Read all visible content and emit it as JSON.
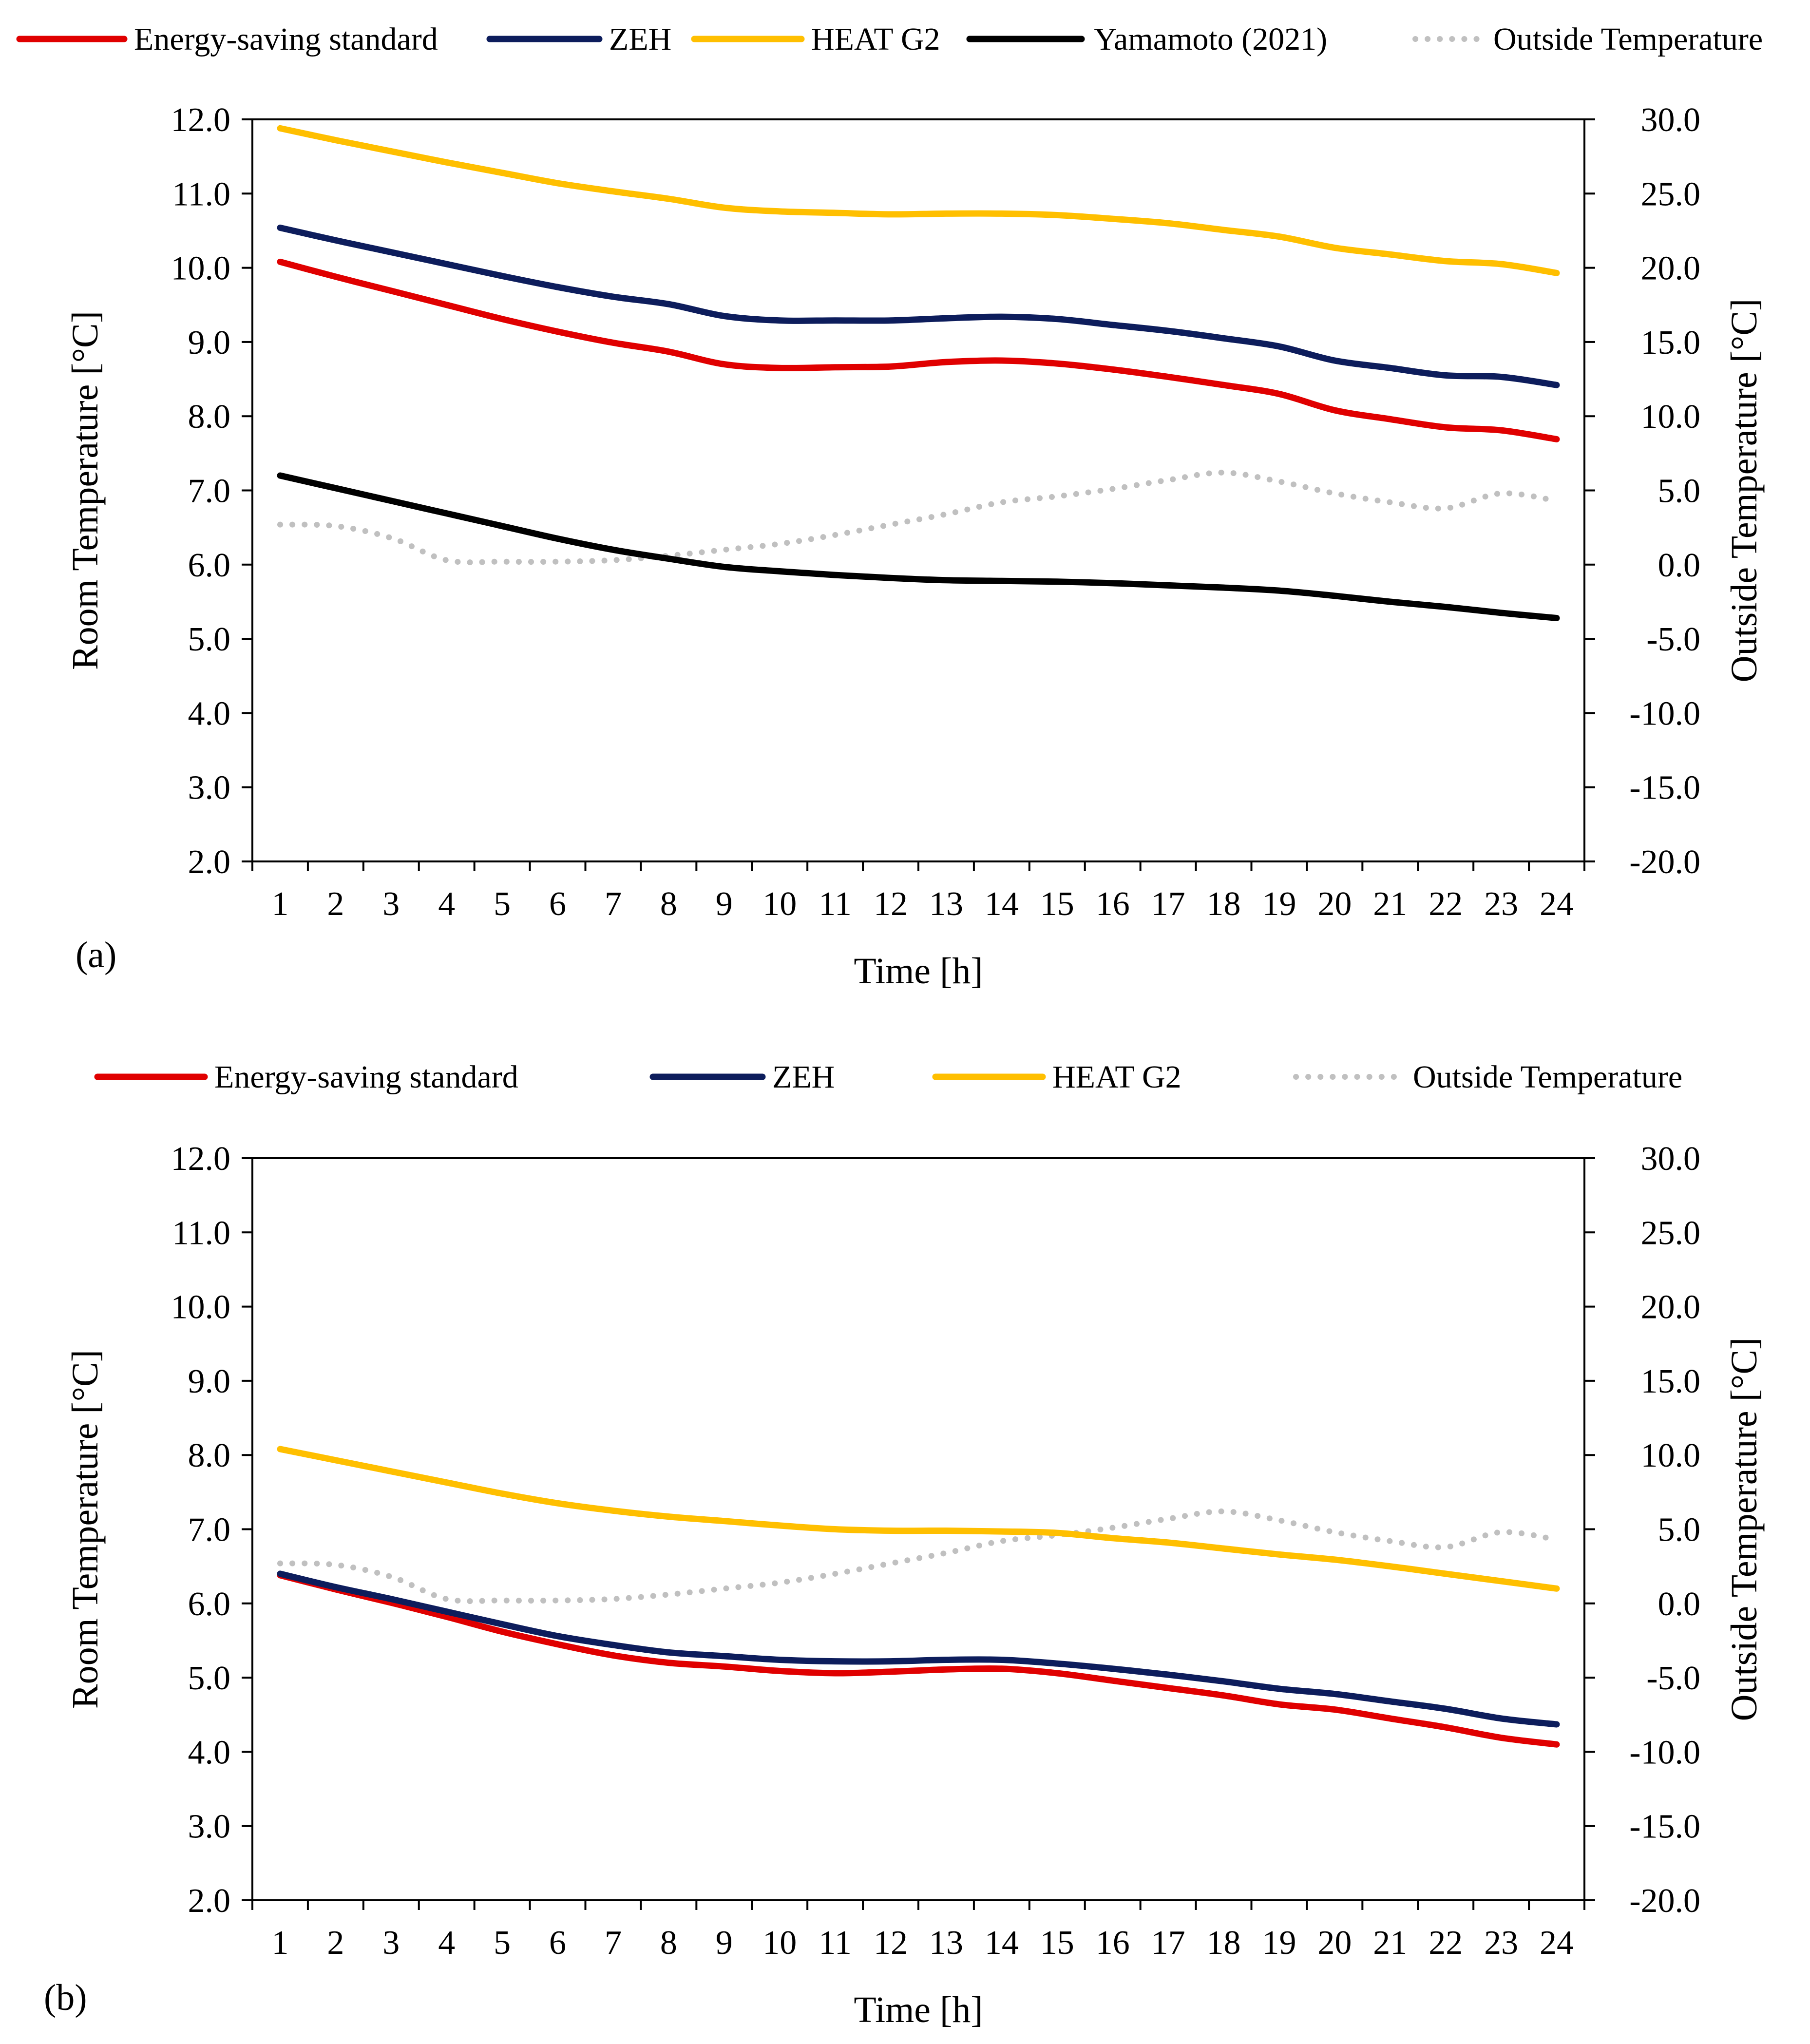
{
  "chart_data": [
    {
      "type": "line",
      "panel_label": "(a)",
      "xlabel": "Time [h]",
      "ylabel_left": "Room Temperature [°C]",
      "ylabel_right": "Outside Temperature [°C]",
      "x": [
        1,
        2,
        3,
        4,
        5,
        6,
        7,
        8,
        9,
        10,
        11,
        12,
        13,
        14,
        15,
        16,
        17,
        18,
        19,
        20,
        21,
        22,
        23,
        24
      ],
      "ylim_left": [
        2.0,
        12.0
      ],
      "ylim_right": [
        -20.0,
        30.0
      ],
      "yticks_left": [
        "2.0",
        "3.0",
        "4.0",
        "5.0",
        "6.0",
        "7.0",
        "8.0",
        "9.0",
        "10.0",
        "11.0",
        "12.0"
      ],
      "yticks_right": [
        "-20.0",
        "-15.0",
        "-10.0",
        "-5.0",
        "0.0",
        "5.0",
        "10.0",
        "15.0",
        "20.0",
        "25.0",
        "30.0"
      ],
      "legend_position": "top",
      "series": [
        {
          "name": "Energy-saving standard",
          "axis": "left",
          "color": "#e00000",
          "style": "solid",
          "values": [
            10.08,
            9.88,
            9.69,
            9.5,
            9.31,
            9.14,
            8.99,
            8.87,
            8.7,
            8.65,
            8.66,
            8.67,
            8.73,
            8.75,
            8.71,
            8.63,
            8.53,
            8.42,
            8.3,
            8.08,
            7.96,
            7.85,
            7.81,
            7.69
          ]
        },
        {
          "name": "ZEH",
          "axis": "left",
          "color": "#0d1d5c",
          "style": "solid",
          "values": [
            10.54,
            10.37,
            10.21,
            10.05,
            9.89,
            9.74,
            9.61,
            9.51,
            9.35,
            9.29,
            9.29,
            9.29,
            9.32,
            9.34,
            9.31,
            9.23,
            9.15,
            9.05,
            8.94,
            8.75,
            8.65,
            8.55,
            8.53,
            8.42
          ]
        },
        {
          "name": "HEAT G2",
          "axis": "left",
          "color": "#ffbf00",
          "style": "solid",
          "values": [
            11.88,
            11.72,
            11.57,
            11.42,
            11.28,
            11.14,
            11.03,
            10.93,
            10.81,
            10.76,
            10.74,
            10.72,
            10.73,
            10.73,
            10.71,
            10.66,
            10.6,
            10.51,
            10.42,
            10.27,
            10.18,
            10.09,
            10.05,
            9.93
          ]
        },
        {
          "name": "Yamamoto (2021)",
          "axis": "left",
          "color": "#000000",
          "style": "solid",
          "values": [
            7.2,
            7.03,
            6.86,
            6.69,
            6.52,
            6.35,
            6.2,
            6.08,
            5.97,
            5.91,
            5.86,
            5.82,
            5.79,
            5.78,
            5.77,
            5.75,
            5.72,
            5.69,
            5.65,
            5.58,
            5.5,
            5.43,
            5.35,
            5.28
          ]
        },
        {
          "name": "Outside Temperature",
          "axis": "right",
          "color": "#c0c0c0",
          "style": "dotted",
          "values": [
            2.7,
            2.6,
            1.8,
            0.3,
            0.2,
            0.2,
            0.3,
            0.6,
            1.0,
            1.4,
            2.0,
            2.7,
            3.4,
            4.2,
            4.6,
            5.1,
            5.7,
            6.2,
            5.6,
            4.8,
            4.2,
            3.8,
            4.8,
            4.3
          ]
        }
      ]
    },
    {
      "type": "line",
      "panel_label": "(b)",
      "xlabel": "Time [h]",
      "ylabel_left": "Room Temperature [°C]",
      "ylabel_right": "Outside Temperature [°C]",
      "x": [
        1,
        2,
        3,
        4,
        5,
        6,
        7,
        8,
        9,
        10,
        11,
        12,
        13,
        14,
        15,
        16,
        17,
        18,
        19,
        20,
        21,
        22,
        23,
        24
      ],
      "ylim_left": [
        2.0,
        12.0
      ],
      "ylim_right": [
        -20.0,
        30.0
      ],
      "yticks_left": [
        "2.0",
        "3.0",
        "4.0",
        "5.0",
        "6.0",
        "7.0",
        "8.0",
        "9.0",
        "10.0",
        "11.0",
        "12.0"
      ],
      "yticks_right": [
        "-20.0",
        "-15.0",
        "-10.0",
        "-5.0",
        "0.0",
        "5.0",
        "10.0",
        "15.0",
        "20.0",
        "25.0",
        "30.0"
      ],
      "legend_position": "top",
      "series": [
        {
          "name": "Energy-saving standard",
          "axis": "left",
          "color": "#e00000",
          "style": "solid",
          "values": [
            6.38,
            6.19,
            6.01,
            5.82,
            5.62,
            5.45,
            5.3,
            5.2,
            5.15,
            5.09,
            5.06,
            5.08,
            5.11,
            5.12,
            5.06,
            4.96,
            4.86,
            4.76,
            4.64,
            4.57,
            4.45,
            4.33,
            4.19,
            4.1
          ]
        },
        {
          "name": "ZEH",
          "axis": "left",
          "color": "#0d1d5c",
          "style": "solid",
          "values": [
            6.4,
            6.22,
            6.06,
            5.89,
            5.72,
            5.56,
            5.44,
            5.34,
            5.29,
            5.24,
            5.22,
            5.22,
            5.24,
            5.24,
            5.19,
            5.12,
            5.04,
            4.95,
            4.85,
            4.78,
            4.68,
            4.58,
            4.45,
            4.37
          ]
        },
        {
          "name": "HEAT G2",
          "axis": "left",
          "color": "#ffbf00",
          "style": "solid",
          "values": [
            8.08,
            7.93,
            7.78,
            7.63,
            7.48,
            7.35,
            7.25,
            7.17,
            7.11,
            7.05,
            7.0,
            6.98,
            6.98,
            6.97,
            6.95,
            6.88,
            6.82,
            6.74,
            6.66,
            6.59,
            6.5,
            6.4,
            6.3,
            6.2
          ]
        },
        {
          "name": "Outside Temperature",
          "axis": "right",
          "color": "#c0c0c0",
          "style": "dotted",
          "values": [
            2.7,
            2.6,
            1.8,
            0.3,
            0.2,
            0.2,
            0.3,
            0.6,
            1.0,
            1.4,
            2.0,
            2.7,
            3.4,
            4.2,
            4.6,
            5.1,
            5.7,
            6.2,
            5.6,
            4.8,
            4.2,
            3.8,
            4.8,
            4.3
          ]
        }
      ]
    }
  ]
}
